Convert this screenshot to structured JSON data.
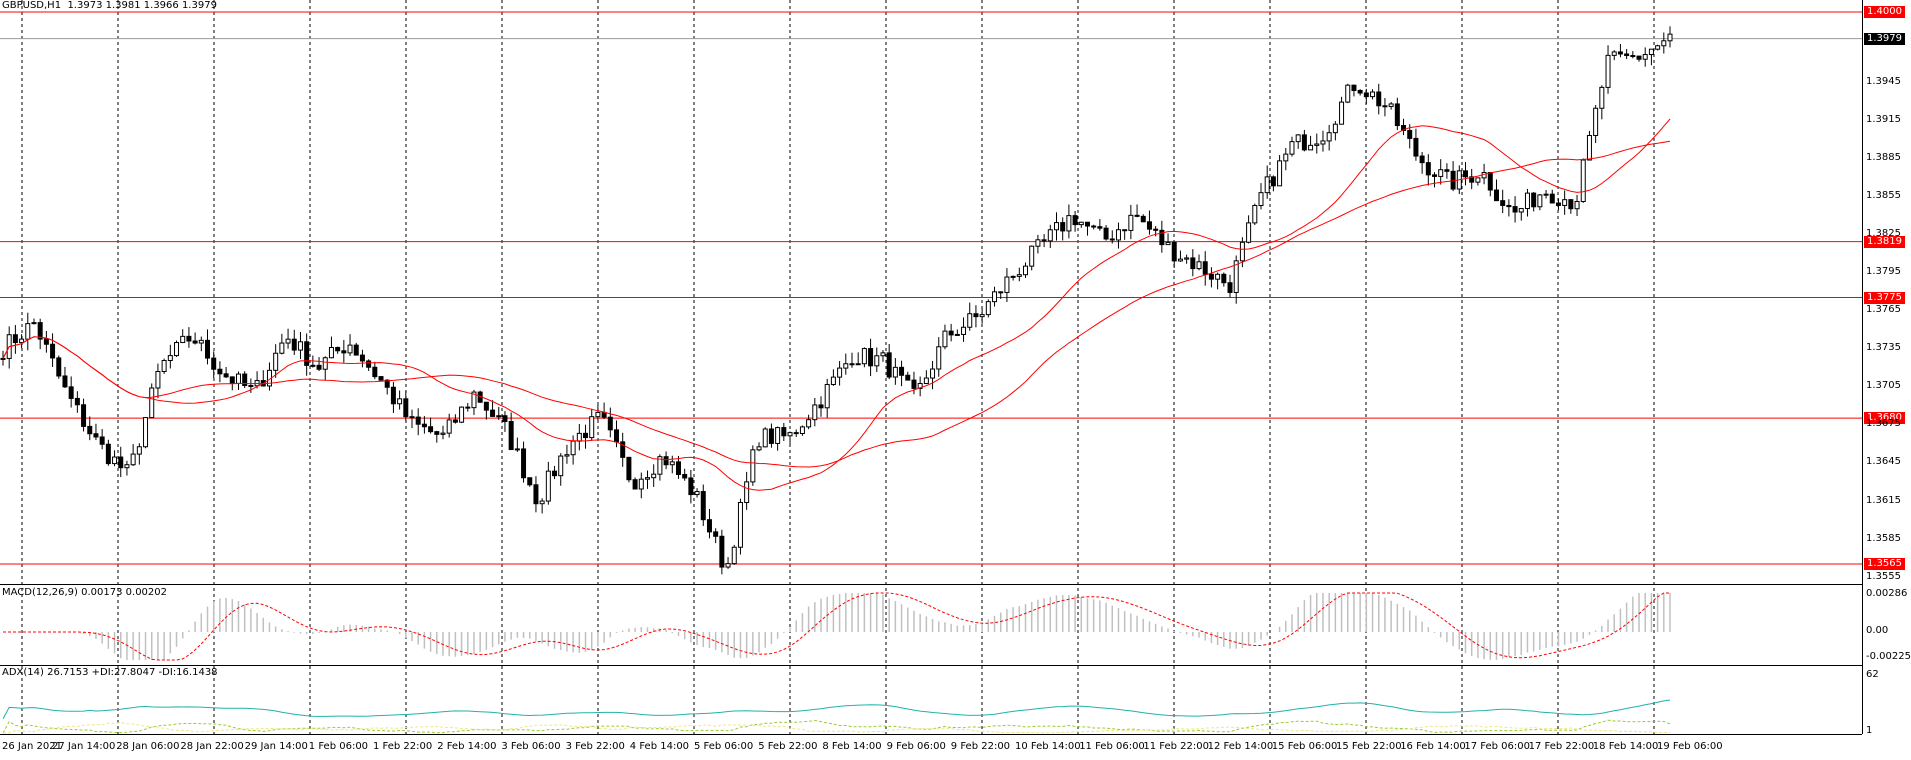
{
  "symbol_header": {
    "symbol": "GBPUSD,H1",
    "ohlc": "1.3973 1.3981 1.3966 1.3979"
  },
  "macd_header": "MACD(12,26,9) 0.00173 0.00202",
  "adx_header": "ADX(14) 26.7153 +DI:27.8047 -DI:16.1438",
  "price_axis_labels": [
    "1.3945",
    "1.3915",
    "1.3885",
    "1.3855",
    "1.3825",
    "1.3795",
    "1.3765",
    "1.3735",
    "1.3705",
    "1.3675",
    "1.3645",
    "1.3615",
    "1.3585",
    "1.3555"
  ],
  "current_price": "1.3979",
  "horizontal_levels": [
    {
      "price": 1.4,
      "label": "1.4000"
    },
    {
      "price": 1.3819,
      "label": "1.3819"
    },
    {
      "price": 1.3775,
      "label": "1.3775"
    },
    {
      "price": 1.368,
      "label": "1.3680"
    },
    {
      "price": 1.3565,
      "label": "1.3565"
    }
  ],
  "macd_axis_labels": [
    "0.00286",
    "0.00",
    "-0.00225"
  ],
  "adx_axis_labels": [
    "62",
    "1"
  ],
  "time_axis_labels": [
    "26 Jan 2021",
    "27 Jan 14:00",
    "28 Jan 06:00",
    "28 Jan 22:00",
    "29 Jan 14:00",
    "1 Feb 06:00",
    "1 Feb 22:00",
    "2 Feb 14:00",
    "3 Feb 06:00",
    "3 Feb 22:00",
    "4 Feb 14:00",
    "5 Feb 06:00",
    "5 Feb 22:00",
    "8 Feb 14:00",
    "9 Feb 06:00",
    "9 Feb 22:00",
    "10 Feb 14:00",
    "11 Feb 06:00",
    "11 Feb 22:00",
    "12 Feb 14:00",
    "15 Feb 06:00",
    "15 Feb 22:00",
    "16 Feb 14:00",
    "17 Feb 06:00",
    "17 Feb 22:00",
    "18 Feb 14:00",
    "19 Feb 06:00"
  ],
  "colors": {
    "level_line": "#ff0000",
    "ma_line": "#ff0000",
    "candles": "#000000",
    "grid": "#000000",
    "macd_hist": "#c0c0c0",
    "macd_signal": "#ff0000",
    "adx_main": "#20b2aa",
    "adx_plus": "#9acd32",
    "adx_minus": "#f0e68c"
  },
  "chart_data": {
    "type": "candlestick",
    "series": [
      {
        "name": "GBPUSD,H1",
        "anchors": [
          1.3735,
          1.3755,
          1.37,
          1.366,
          1.3635,
          1.372,
          1.3745,
          1.3715,
          1.37,
          1.3745,
          1.372,
          1.374,
          1.371,
          1.3675,
          1.3665,
          1.37,
          1.367,
          1.3615,
          1.366,
          1.368,
          1.363,
          1.365,
          1.362,
          1.356,
          1.3665,
          1.3665,
          1.3695,
          1.373,
          1.3725,
          1.3695,
          1.3745,
          1.376,
          1.379,
          1.3815,
          1.384,
          1.382,
          1.384,
          1.3815,
          1.38,
          1.3785,
          1.3855,
          1.3895,
          1.3905,
          1.3945,
          1.3925,
          1.3885,
          1.3865,
          1.3875,
          1.384,
          1.386,
          1.385,
          1.396,
          1.3965,
          1.3979
        ]
      }
    ]
  }
}
